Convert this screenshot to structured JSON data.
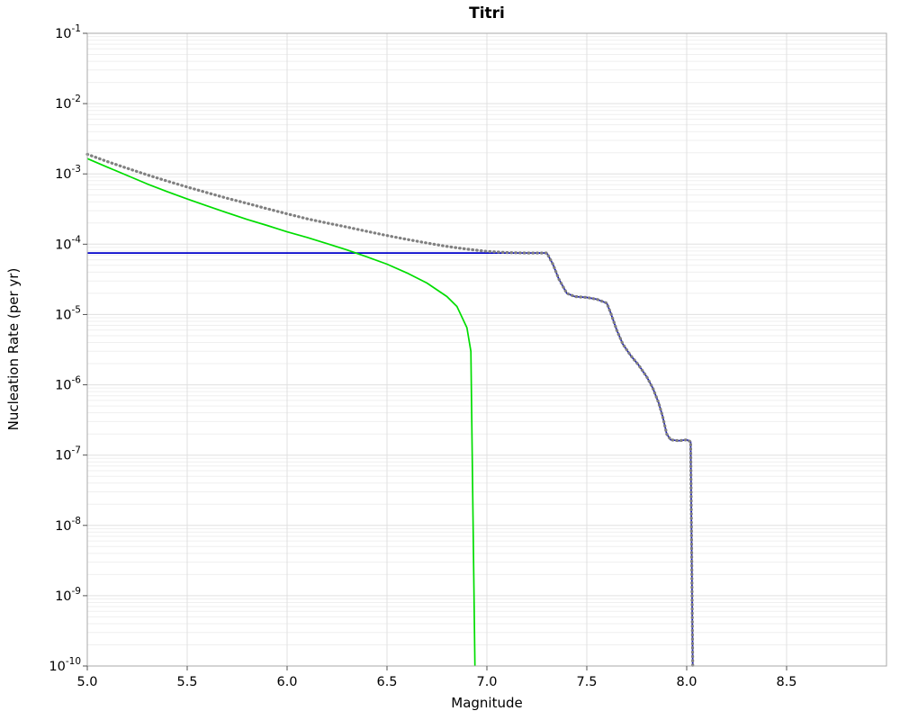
{
  "chart": {
    "title": "Titri",
    "xlabel": "Magnitude",
    "ylabel": "Nucleation Rate (per yr)"
  },
  "chart_data": {
    "type": "line",
    "title": "Titri",
    "xlabel": "Magnitude",
    "ylabel": "Nucleation Rate (per yr)",
    "xlim": [
      5.0,
      9.0
    ],
    "ylim": [
      1e-10,
      0.1
    ],
    "x_ticks": [
      5.0,
      5.5,
      6.0,
      6.5,
      7.0,
      7.5,
      8.0,
      8.5
    ],
    "y_tick_exponents": [
      -1,
      -2,
      -3,
      -4,
      -5,
      -6,
      -7,
      -8,
      -9,
      -10
    ],
    "y_scale": "log",
    "grid": true,
    "legend": "none",
    "colors": {
      "green_line": "#00dd00",
      "gray_dotted_line": "#808080",
      "blue_line": "#0000cc",
      "grid_major": "#e0e0e0",
      "grid_minor": "#efefef",
      "plot_border": "#aaaaaa"
    },
    "series": [
      {
        "name": "blue-solid-curve",
        "color": "#0000cc",
        "style": "solid",
        "width": 1.7,
        "points": [
          [
            5.0,
            7.5e-05
          ],
          [
            7.3,
            7.5e-05
          ],
          [
            7.33,
            5.2e-05
          ],
          [
            7.36,
            3.2e-05
          ],
          [
            7.4,
            2e-05
          ],
          [
            7.44,
            1.8e-05
          ],
          [
            7.5,
            1.75e-05
          ],
          [
            7.55,
            1.65e-05
          ],
          [
            7.6,
            1.45e-05
          ],
          [
            7.62,
            1.05e-05
          ],
          [
            7.65,
            6e-06
          ],
          [
            7.68,
            3.8e-06
          ],
          [
            7.72,
            2.6e-06
          ],
          [
            7.76,
            1.9e-06
          ],
          [
            7.8,
            1.3e-06
          ],
          [
            7.83,
            9e-07
          ],
          [
            7.86,
            5.5e-07
          ],
          [
            7.88,
            3.5e-07
          ],
          [
            7.9,
            2e-07
          ],
          [
            7.92,
            1.65e-07
          ],
          [
            7.96,
            1.6e-07
          ],
          [
            8.0,
            1.65e-07
          ],
          [
            8.02,
            1.55e-07
          ],
          [
            8.03,
            1e-10
          ]
        ]
      },
      {
        "name": "green-solid-curve",
        "color": "#00dd00",
        "style": "solid",
        "width": 1.7,
        "points": [
          [
            5.0,
            0.00165
          ],
          [
            5.1,
            0.00125
          ],
          [
            5.2,
            0.00095
          ],
          [
            5.3,
            0.00072
          ],
          [
            5.4,
            0.00056
          ],
          [
            5.5,
            0.00044
          ],
          [
            5.6,
            0.00035
          ],
          [
            5.7,
            0.00028
          ],
          [
            5.8,
            0.000225
          ],
          [
            5.9,
            0.000185
          ],
          [
            6.0,
            0.00015
          ],
          [
            6.1,
            0.000125
          ],
          [
            6.2,
            0.000102
          ],
          [
            6.3,
            8.3e-05
          ],
          [
            6.4,
            6.6e-05
          ],
          [
            6.5,
            5.2e-05
          ],
          [
            6.6,
            3.9e-05
          ],
          [
            6.7,
            2.8e-05
          ],
          [
            6.8,
            1.8e-05
          ],
          [
            6.85,
            1.3e-05
          ],
          [
            6.9,
            6.5e-06
          ],
          [
            6.92,
            3e-06
          ],
          [
            6.94,
            1e-10
          ]
        ]
      },
      {
        "name": "gray-dotted-curve",
        "color": "#808080",
        "style": "dotted",
        "width": 3.2,
        "points": [
          [
            5.0,
            0.0019
          ],
          [
            5.1,
            0.0015
          ],
          [
            5.2,
            0.0012
          ],
          [
            5.3,
            0.00097
          ],
          [
            5.4,
            0.00079
          ],
          [
            5.5,
            0.00065
          ],
          [
            5.6,
            0.00054
          ],
          [
            5.7,
            0.00045
          ],
          [
            5.8,
            0.00038
          ],
          [
            5.9,
            0.00032
          ],
          [
            6.0,
            0.00027
          ],
          [
            6.1,
            0.00023
          ],
          [
            6.2,
            0.0002
          ],
          [
            6.3,
            0.000175
          ],
          [
            6.4,
            0.000152
          ],
          [
            6.5,
            0.000133
          ],
          [
            6.6,
            0.000117
          ],
          [
            6.7,
            0.000104
          ],
          [
            6.8,
            9.3e-05
          ],
          [
            6.9,
            8.5e-05
          ],
          [
            7.0,
            7.9e-05
          ],
          [
            7.1,
            7.6e-05
          ],
          [
            7.2,
            7.5e-05
          ],
          [
            7.3,
            7.5e-05
          ],
          [
            7.33,
            5.2e-05
          ],
          [
            7.36,
            3.2e-05
          ],
          [
            7.4,
            2e-05
          ],
          [
            7.44,
            1.8e-05
          ],
          [
            7.5,
            1.75e-05
          ],
          [
            7.55,
            1.65e-05
          ],
          [
            7.6,
            1.45e-05
          ],
          [
            7.62,
            1.05e-05
          ],
          [
            7.65,
            6e-06
          ],
          [
            7.68,
            3.8e-06
          ],
          [
            7.72,
            2.6e-06
          ],
          [
            7.76,
            1.9e-06
          ],
          [
            7.8,
            1.3e-06
          ],
          [
            7.83,
            9e-07
          ],
          [
            7.86,
            5.5e-07
          ],
          [
            7.88,
            3.5e-07
          ],
          [
            7.9,
            2e-07
          ],
          [
            7.92,
            1.65e-07
          ],
          [
            7.96,
            1.6e-07
          ],
          [
            8.0,
            1.65e-07
          ],
          [
            8.02,
            1.55e-07
          ],
          [
            8.03,
            1e-10
          ]
        ]
      }
    ]
  }
}
